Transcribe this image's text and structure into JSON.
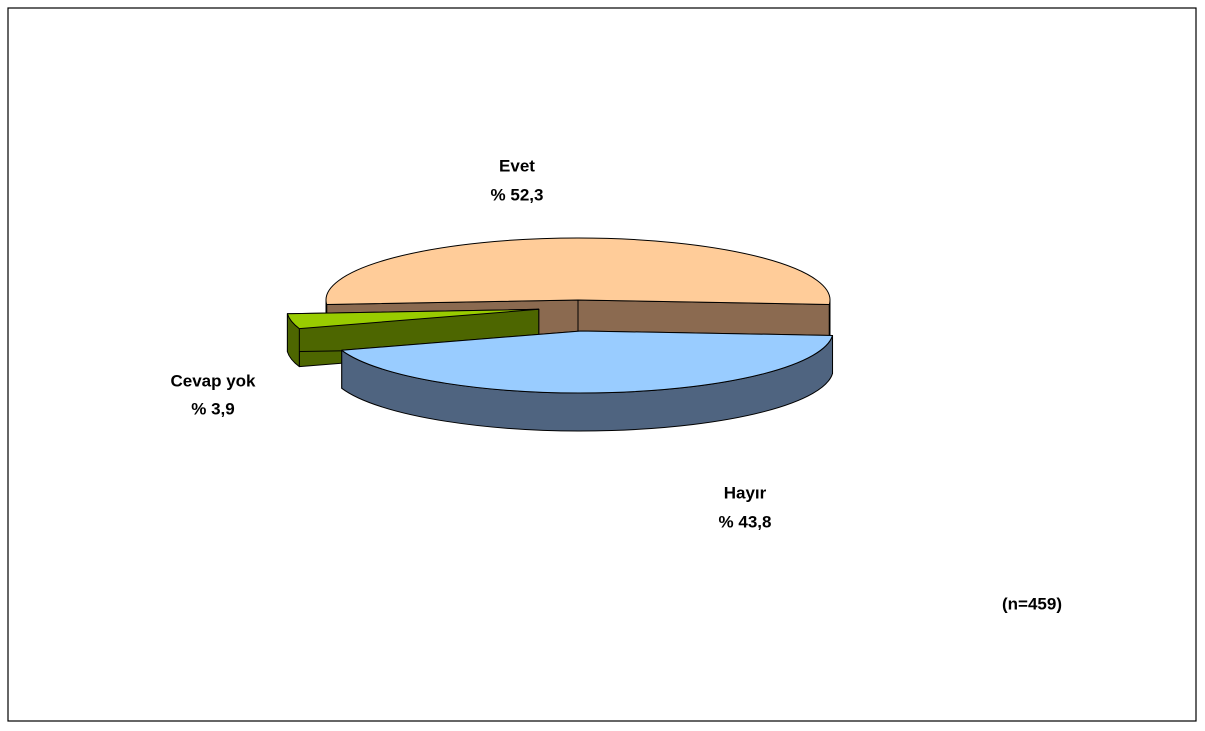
{
  "chart_data": {
    "type": "pie3d",
    "categories": [
      "Evet",
      "Hayır",
      "Cevap yok"
    ],
    "values": [
      52.3,
      43.8,
      3.9
    ],
    "value_labels": [
      "% 52,3",
      "% 43,8",
      "% 3,9"
    ],
    "colors": [
      "#ffcc99",
      "#99ccff",
      "#99cc00"
    ],
    "side_colors": [
      "#8b6a50",
      "#4f6480",
      "#4d6600"
    ],
    "annotation": "(n=459)"
  }
}
